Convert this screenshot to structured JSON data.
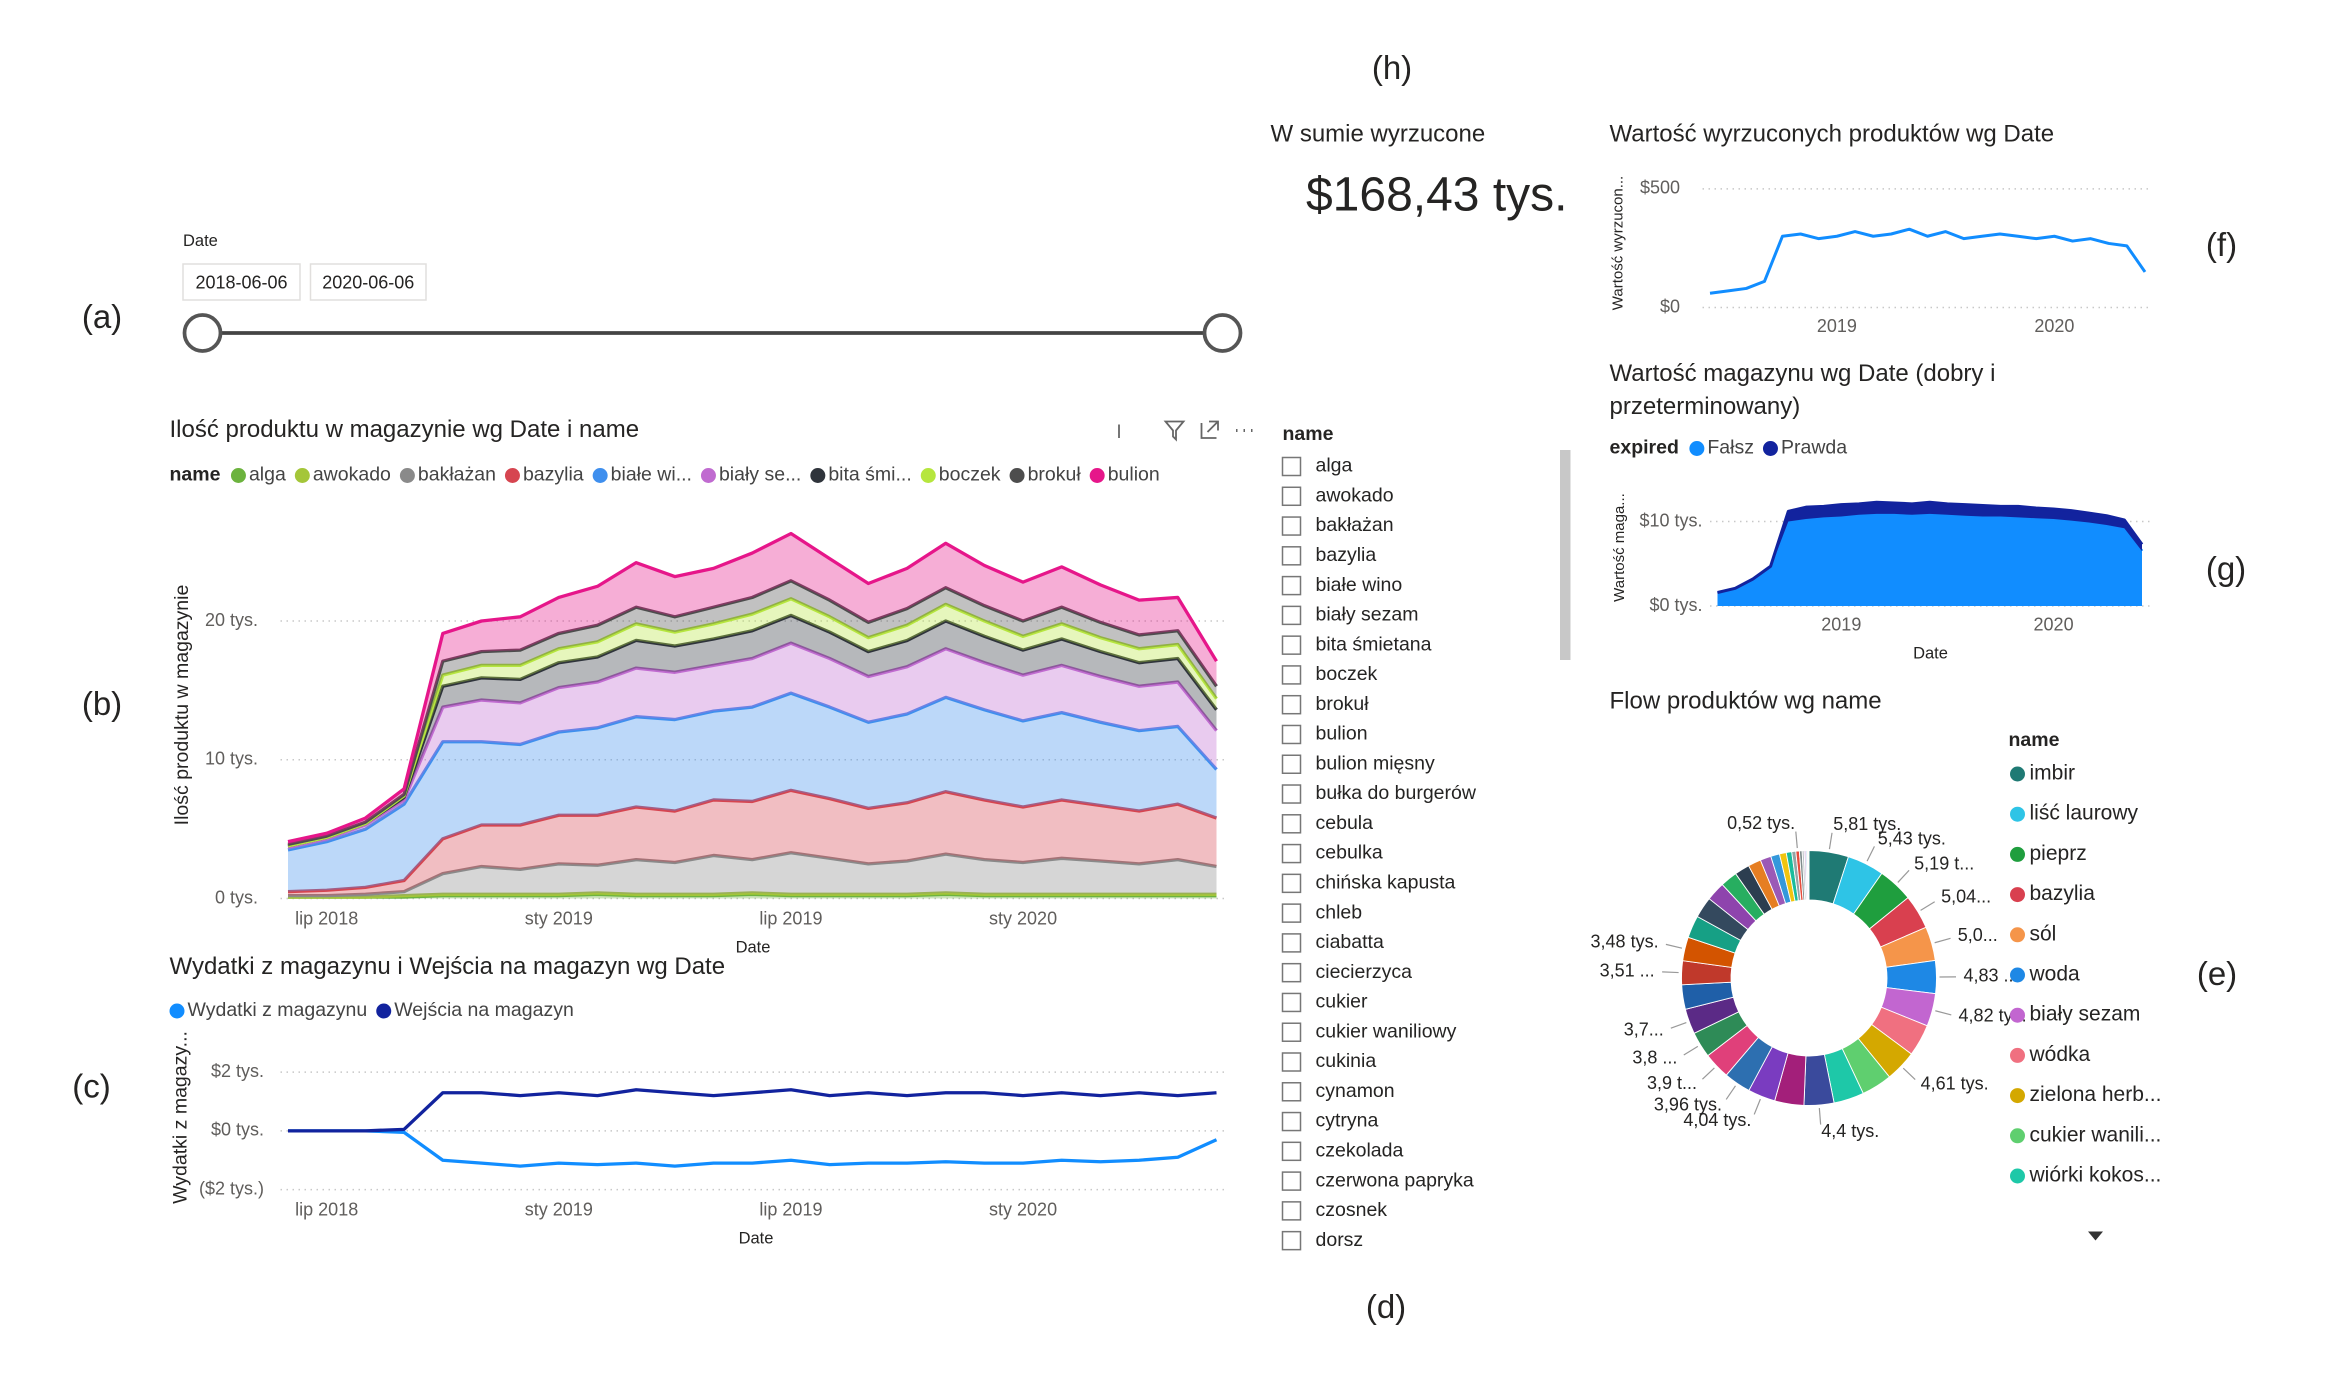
{
  "labels": [
    "(a)",
    "(b)",
    "(c)",
    "(d)",
    "(e)",
    "(f)",
    "(g)",
    "(h)"
  ],
  "date_slicer": {
    "title": "Date",
    "start": "2018-06-06",
    "end": "2020-06-06"
  },
  "card": {
    "title": "W sumie wyrzucone",
    "value": "$168,43 tys."
  },
  "name_slicer": {
    "title": "name",
    "items": [
      "alga",
      "awokado",
      "bakłażan",
      "bazylia",
      "białe wino",
      "biały sezam",
      "bita śmietana",
      "boczek",
      "brokuł",
      "bulion",
      "bulion mięsny",
      "bułka do burgerów",
      "cebula",
      "cebulka",
      "chińska kapusta",
      "chleb",
      "ciabatta",
      "ciecierzyca",
      "cukier",
      "cukier waniliowy",
      "cukinia",
      "cynamon",
      "cytryna",
      "czekolada",
      "czerwona papryka",
      "czosnek",
      "dorsz"
    ]
  },
  "chart_data": [
    {
      "type": "area",
      "stacked": true,
      "grid": true,
      "title": "Ilość produktu w magazynie wg Date i name",
      "legend_title": "name",
      "x_label": "Date",
      "y_label": "Ilość produktu w magazynie",
      "x": [
        "2018-06",
        "2018-07",
        "2018-08",
        "2018-09",
        "2018-10",
        "2018-11",
        "2018-12",
        "2019-01",
        "2019-02",
        "2019-03",
        "2019-04",
        "2019-05",
        "2019-06",
        "2019-07",
        "2019-08",
        "2019-09",
        "2019-10",
        "2019-11",
        "2019-12",
        "2020-01",
        "2020-02",
        "2020-03",
        "2020-04",
        "2020-05",
        "2020-06"
      ],
      "xlim": [
        "2018-06",
        "2020-06"
      ],
      "xticks": [
        {
          "value": "2018-07",
          "label": "lip 2018"
        },
        {
          "value": "2019-01",
          "label": "sty 2019"
        },
        {
          "value": "2019-07",
          "label": "lip 2019"
        },
        {
          "value": "2020-01",
          "label": "sty 2020"
        }
      ],
      "ylim": [
        0,
        28
      ],
      "yticks": [
        {
          "value": 0,
          "label": "0 tys."
        },
        {
          "value": 10,
          "label": "10 tys."
        },
        {
          "value": 20,
          "label": "20 tys."
        }
      ],
      "series": [
        {
          "name": "alga",
          "color": "#6cb33e",
          "values": [
            0.1,
            0.1,
            0.1,
            0.1,
            0.2,
            0.2,
            0.2,
            0.2,
            0.3,
            0.2,
            0.2,
            0.2,
            0.3,
            0.2,
            0.2,
            0.2,
            0.2,
            0.3,
            0.2,
            0.2,
            0.2,
            0.2,
            0.2,
            0.2,
            0.2
          ]
        },
        {
          "name": "awokado",
          "color": "#a4c639",
          "values": [
            0,
            0,
            0,
            0.1,
            0.1,
            0.1,
            0.1,
            0.1,
            0.1,
            0.1,
            0.1,
            0.1,
            0.1,
            0.1,
            0.1,
            0.1,
            0.1,
            0.1,
            0.1,
            0.1,
            0.1,
            0.1,
            0.1,
            0.1,
            0.1
          ]
        },
        {
          "name": "bakłażan",
          "color": "#8a8a8a",
          "values": [
            0.1,
            0.1,
            0.2,
            0.3,
            1.5,
            2.0,
            1.8,
            2.2,
            2.0,
            2.5,
            2.3,
            2.8,
            2.4,
            3.0,
            2.6,
            2.2,
            2.4,
            2.8,
            2.5,
            2.3,
            2.6,
            2.4,
            2.2,
            2.5,
            2.0
          ]
        },
        {
          "name": "bazylia",
          "color": "#d64550",
          "values": [
            0.3,
            0.4,
            0.5,
            0.8,
            2.5,
            3.0,
            3.2,
            3.5,
            3.6,
            3.8,
            3.7,
            4.0,
            4.2,
            4.5,
            4.3,
            4.0,
            4.2,
            4.5,
            4.3,
            4.0,
            4.2,
            4.0,
            3.8,
            4.0,
            3.5
          ]
        },
        {
          "name": "białe wi...",
          "color": "#3f8fee",
          "values": [
            3.0,
            3.5,
            4.2,
            5.5,
            7.0,
            6.0,
            5.8,
            6.0,
            6.3,
            6.5,
            6.6,
            6.4,
            6.8,
            7.0,
            6.6,
            6.2,
            6.4,
            6.8,
            6.5,
            6.2,
            6.3,
            6.0,
            5.8,
            5.6,
            3.5
          ]
        },
        {
          "name": "biały se...",
          "color": "#c06bd0",
          "values": [
            0.2,
            0.2,
            0.3,
            0.3,
            2.5,
            3.0,
            3.0,
            3.2,
            3.3,
            3.5,
            3.4,
            3.3,
            3.5,
            3.6,
            3.5,
            3.3,
            3.4,
            3.5,
            3.4,
            3.3,
            3.4,
            3.3,
            3.2,
            3.2,
            2.8
          ]
        },
        {
          "name": "bita śmi...",
          "color": "#2f343b",
          "values": [
            0.1,
            0.1,
            0.1,
            0.2,
            1.5,
            1.6,
            1.7,
            1.8,
            1.8,
            2.0,
            1.9,
            1.9,
            2.0,
            2.0,
            1.9,
            1.8,
            1.9,
            2.0,
            1.9,
            1.8,
            1.9,
            1.8,
            1.7,
            1.7,
            1.5
          ]
        },
        {
          "name": "boczek",
          "color": "#b6e63e",
          "values": [
            0,
            0,
            0,
            0.1,
            0.8,
            0.9,
            1.0,
            1.0,
            1.1,
            1.2,
            1.0,
            1.1,
            1.2,
            1.2,
            1.1,
            1.0,
            1.1,
            1.2,
            1.1,
            1.0,
            1.1,
            1.0,
            1.0,
            1.0,
            0.8
          ]
        },
        {
          "name": "brokuł",
          "color": "#4d4d4d",
          "values": [
            0.1,
            0.1,
            0.1,
            0.1,
            1.0,
            1.0,
            1.1,
            1.1,
            1.2,
            1.2,
            1.1,
            1.2,
            1.2,
            1.3,
            1.2,
            1.1,
            1.2,
            1.2,
            1.1,
            1.1,
            1.2,
            1.1,
            1.0,
            1.0,
            0.9
          ]
        },
        {
          "name": "bulion",
          "color": "#e6168a",
          "values": [
            0.2,
            0.2,
            0.3,
            0.4,
            2.0,
            2.2,
            2.4,
            2.6,
            2.8,
            3.2,
            2.9,
            2.8,
            3.2,
            3.4,
            3.0,
            2.8,
            2.9,
            3.2,
            2.9,
            2.8,
            2.9,
            2.7,
            2.5,
            2.4,
            1.8
          ]
        }
      ]
    },
    {
      "type": "line",
      "grid": true,
      "title": "Wydatki z magazynu i Wejścia na magazyn wg Date",
      "x_label": "Date",
      "y_label": "Wydatki z magazy...",
      "x": [
        "2018-06",
        "2018-07",
        "2018-08",
        "2018-09",
        "2018-10",
        "2018-11",
        "2018-12",
        "2019-01",
        "2019-02",
        "2019-03",
        "2019-04",
        "2019-05",
        "2019-06",
        "2019-07",
        "2019-08",
        "2019-09",
        "2019-10",
        "2019-11",
        "2019-12",
        "2020-01",
        "2020-02",
        "2020-03",
        "2020-04",
        "2020-05",
        "2020-06"
      ],
      "xlim": [
        "2018-06",
        "2020-06"
      ],
      "xticks": [
        {
          "value": "2018-07",
          "label": "lip 2018"
        },
        {
          "value": "2019-01",
          "label": "sty 2019"
        },
        {
          "value": "2019-07",
          "label": "lip 2019"
        },
        {
          "value": "2020-01",
          "label": "sty 2020"
        }
      ],
      "ylim": [
        -2.1,
        2.5
      ],
      "yticks": [
        {
          "value": -2,
          "label": "($2 tys.)"
        },
        {
          "value": 0,
          "label": "$0 tys."
        },
        {
          "value": 2,
          "label": "$2 tys."
        }
      ],
      "series": [
        {
          "name": "Wydatki z magazynu",
          "color": "#118dff",
          "values": [
            0,
            0,
            0,
            -0.05,
            -1.0,
            -1.1,
            -1.2,
            -1.1,
            -1.15,
            -1.1,
            -1.2,
            -1.1,
            -1.1,
            -1.0,
            -1.15,
            -1.1,
            -1.1,
            -1.05,
            -1.1,
            -1.1,
            -1.0,
            -1.05,
            -1.0,
            -0.9,
            -0.3
          ]
        },
        {
          "name": "Wejścia na magazyn",
          "color": "#12239e",
          "values": [
            0,
            0,
            0,
            0.05,
            1.3,
            1.3,
            1.2,
            1.3,
            1.2,
            1.4,
            1.3,
            1.2,
            1.3,
            1.4,
            1.2,
            1.3,
            1.2,
            1.3,
            1.3,
            1.2,
            1.3,
            1.2,
            1.3,
            1.2,
            1.3
          ]
        }
      ]
    },
    {
      "type": "line",
      "grid": true,
      "title": "Wartość wyrzuconych produktów wg Date",
      "y_label": "Wartość wyrzucon...",
      "x": [
        "2018-06",
        "2018-07",
        "2018-08",
        "2018-09",
        "2018-10",
        "2018-11",
        "2018-12",
        "2019-01",
        "2019-02",
        "2019-03",
        "2019-04",
        "2019-05",
        "2019-06",
        "2019-07",
        "2019-08",
        "2019-09",
        "2019-10",
        "2019-11",
        "2019-12",
        "2020-01",
        "2020-02",
        "2020-03",
        "2020-04",
        "2020-05",
        "2020-06"
      ],
      "xlim": [
        "2018-06",
        "2020-06"
      ],
      "xticks": [
        {
          "value": "2019-01",
          "label": "2019"
        },
        {
          "value": "2020-01",
          "label": "2020"
        }
      ],
      "ylim": [
        0,
        550
      ],
      "yticks": [
        {
          "value": 0,
          "label": "$0"
        },
        {
          "value": 500,
          "label": "$500"
        }
      ],
      "series": [
        {
          "name": "Wartość",
          "color": "#118dff",
          "values": [
            60,
            70,
            80,
            110,
            300,
            310,
            290,
            300,
            320,
            300,
            310,
            330,
            300,
            320,
            290,
            300,
            310,
            300,
            290,
            300,
            280,
            290,
            270,
            260,
            150
          ]
        }
      ]
    },
    {
      "type": "area",
      "stacked": true,
      "grid": true,
      "title": "Wartość magazynu wg Date (dobry i przeterminowany)",
      "legend_title": "expired",
      "x_label": "Date",
      "y_label": "Wartość maga...",
      "x": [
        "2018-06",
        "2018-07",
        "2018-08",
        "2018-09",
        "2018-10",
        "2018-11",
        "2018-12",
        "2019-01",
        "2019-02",
        "2019-03",
        "2019-04",
        "2019-05",
        "2019-06",
        "2019-07",
        "2019-08",
        "2019-09",
        "2019-10",
        "2019-11",
        "2019-12",
        "2020-01",
        "2020-02",
        "2020-03",
        "2020-04",
        "2020-05",
        "2020-06"
      ],
      "xlim": [
        "2018-06",
        "2020-06"
      ],
      "xticks": [
        {
          "value": "2019-01",
          "label": "2019"
        },
        {
          "value": "2020-01",
          "label": "2020"
        }
      ],
      "ylim": [
        0,
        13.5
      ],
      "yticks": [
        {
          "value": 0,
          "label": "$0 tys."
        },
        {
          "value": 10,
          "label": "$10 tys."
        }
      ],
      "series": [
        {
          "name": "Fałsz",
          "color": "#118dff",
          "values": [
            1.5,
            2,
            3,
            4.5,
            10,
            10.3,
            10.5,
            10.6,
            10.8,
            10.9,
            10.9,
            10.8,
            10.9,
            10.8,
            10.7,
            10.6,
            10.6,
            10.5,
            10.4,
            10.3,
            10.1,
            9.9,
            9.6,
            9.2,
            6.5
          ]
        },
        {
          "name": "Prawda",
          "color": "#12239e",
          "values": [
            0.1,
            0.1,
            0.2,
            0.2,
            1.2,
            1.4,
            1.3,
            1.4,
            1.3,
            1.4,
            1.3,
            1.3,
            1.4,
            1.3,
            1.3,
            1.3,
            1.2,
            1.3,
            1.2,
            1.2,
            1.2,
            1.1,
            1.1,
            1.0,
            0.8
          ]
        }
      ]
    },
    {
      "type": "donut",
      "title": "Flow produktów wg name",
      "legend_title": "name",
      "categories": [
        "imbir",
        "liść laurowy",
        "pieprz",
        "bazylia",
        "sól",
        "woda",
        "biały sezam",
        "wódka",
        "zielona herb...",
        "cukier wanili...",
        "wiórki kokos...",
        null,
        null,
        null,
        null,
        null,
        null,
        null,
        null,
        null,
        null,
        null,
        null,
        null,
        null,
        null,
        null,
        null,
        null,
        null,
        null,
        null,
        null,
        null,
        null,
        null,
        null,
        null,
        null
      ],
      "values": [
        5.81,
        5.43,
        5.19,
        5.04,
        5.0,
        4.83,
        4.82,
        4.7,
        4.61,
        4.5,
        4.45,
        4.4,
        4.3,
        4.04,
        3.96,
        3.9,
        3.8,
        3.7,
        3.6,
        3.51,
        3.48,
        3.3,
        3.1,
        2.8,
        2.5,
        2.2,
        1.9,
        1.6,
        1.3,
        1.0,
        0.8,
        0.6,
        0.52,
        0.4,
        0.3,
        0.25,
        0.2,
        0.15,
        0.1
      ],
      "value_labels": [
        "5,81 tys.",
        "5,43 tys.",
        "5,19 t...",
        "5,04...",
        "5,0...",
        "4,83 ...",
        "4,82 tys.",
        null,
        "4,61 tys.",
        null,
        null,
        "4,4 tys.",
        null,
        "4,04 tys.",
        "3,96 tys.",
        "3,9 t...",
        "3,8 ...",
        "3,7...",
        null,
        "3,51 ...",
        "3,48 tys.",
        null,
        null,
        null,
        null,
        null,
        null,
        null,
        null,
        null,
        null,
        null,
        "0,52 tys.",
        null,
        null,
        null,
        null,
        null,
        null
      ],
      "colors": [
        "#1f7a74",
        "#2ec4e6",
        "#1f9e3e",
        "#d9404f",
        "#f5954a",
        "#1e88e5",
        "#c266d0",
        "#f07080",
        "#d4a800",
        "#5fcf6f",
        "#1ec8a8",
        "#3a4a9c",
        "#a31f7a",
        "#7a3cc0",
        "#2d6fb0",
        "#e0407a",
        "#2e8b57",
        "#5b2a86",
        "#1f5fa8",
        "#c0392b",
        "#d35400",
        "#16a085",
        "#34495e",
        "#8e44ad",
        "#27ae60",
        "#2c3e50",
        "#e67e22",
        "#9b59b6",
        "#3498db",
        "#f1c40f",
        "#1abc9c",
        "#95a5a6",
        "#e74c3c",
        "#7f8c8d",
        "#bdc3c7",
        "#d2b4de",
        "#aed6f1",
        "#f9e79f",
        "#a3e4d7"
      ]
    }
  ]
}
